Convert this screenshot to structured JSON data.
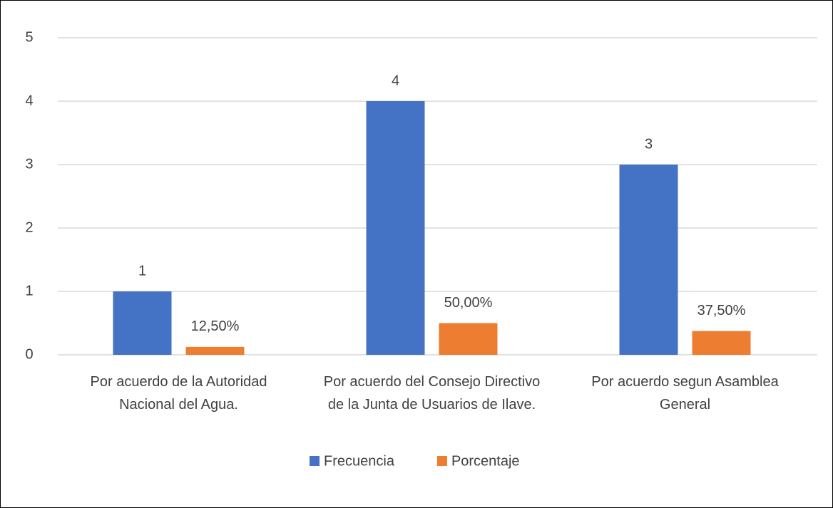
{
  "chart_data": {
    "type": "bar",
    "categories": [
      "Por acuerdo de la Autoridad Nacional del Agua.",
      "Por acuerdo del Consejo Directivo de la Junta de Usuarios de Ilave.",
      "Por acuerdo segun Asamblea General"
    ],
    "series": [
      {
        "name": "Frecuencia",
        "color": "#4472c4",
        "values": [
          1,
          4,
          3
        ]
      },
      {
        "name": "Porcentaje",
        "color": "#ed7d31",
        "values": [
          0.125,
          0.5,
          0.375
        ],
        "value_labels": [
          "12,50%",
          "50,00%",
          "37,50%"
        ]
      }
    ],
    "ylim": [
      0,
      5
    ],
    "yticks": [
      0,
      1,
      2,
      3,
      4,
      5
    ],
    "grid": true,
    "legend": "bottom"
  }
}
